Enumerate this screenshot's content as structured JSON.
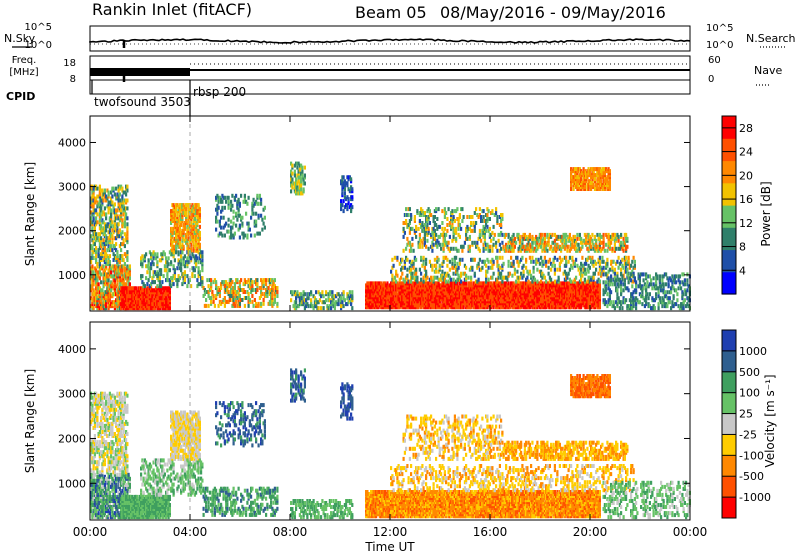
{
  "header": {
    "station": "Rankin Inlet (fitACF)",
    "beam": "Beam 05",
    "date_range": "08/May/2016 - 09/May/2016"
  },
  "summary": {
    "nsky_label": "N.Sky",
    "freq_label_1": "Freq.",
    "freq_label_2": "[MHz]",
    "cpid_label": "CPID",
    "nsearch_label": "N.Search",
    "nave_label": "Nave",
    "nsky_ticks": [
      "10^5",
      "10^0"
    ],
    "nsearch_ticks": [
      "10^5",
      "10^0"
    ],
    "freq_ticks": [
      "18",
      "8"
    ],
    "nave_ticks": [
      "60",
      "0"
    ],
    "cpid_segments": [
      {
        "label": "twofsound 3503",
        "start_hour": 0,
        "end_hour": 4.0
      },
      {
        "label": "rbsp 200",
        "start_hour": 4.0,
        "end_hour": 24
      }
    ]
  },
  "chart_data": [
    {
      "type": "heatmap",
      "name": "power",
      "ylabel": "Slant Range [km]",
      "xlabel": "Time UT",
      "xlim": [
        0,
        24
      ],
      "ylim": [
        180,
        4600
      ],
      "yticks": [
        1000,
        2000,
        3000,
        4000
      ],
      "xtick_labels": [
        "00:00",
        "04:00",
        "08:00",
        "12:00",
        "16:00",
        "20:00",
        "00:00"
      ],
      "colorbar": {
        "label": "Power [dB]",
        "ticks": [
          "4",
          "8",
          "12",
          "16",
          "20",
          "24",
          "28"
        ],
        "range": [
          0,
          30
        ],
        "colors": [
          "#0000ff",
          "#1f4fa8",
          "#2f7f6a",
          "#66c266",
          "#f2c200",
          "#ff8800",
          "#ff5000",
          "#ff0000"
        ]
      }
    },
    {
      "type": "heatmap",
      "name": "velocity",
      "ylabel": "Slant Range [km]",
      "xlabel": "Time UT",
      "xlim": [
        0,
        24
      ],
      "ylim": [
        180,
        4600
      ],
      "yticks": [
        1000,
        2000,
        3000,
        4000
      ],
      "xtick_labels": [
        "00:00",
        "04:00",
        "08:00",
        "12:00",
        "16:00",
        "20:00",
        "00:00"
      ],
      "colorbar": {
        "label": "Velocity [m s⁻¹]",
        "ticks": [
          "1000",
          "500",
          "100",
          "25",
          "-25",
          "-100",
          "-500",
          "-1000"
        ],
        "colors": [
          "#1f3fb0",
          "#2f5f8f",
          "#3f9f5f",
          "#66c266",
          "#c8c8c8",
          "#ffcc00",
          "#ff8800",
          "#ff5000",
          "#ff0000"
        ]
      }
    }
  ],
  "scatter_regions": [
    {
      "h0": 0.0,
      "h1": 1.6,
      "r0": 200,
      "r1": 1200,
      "d": 0.55,
      "p": [
        2,
        7
      ],
      "v": [
        0,
        4
      ]
    },
    {
      "h0": 0.0,
      "h1": 1.5,
      "r0": 1200,
      "r1": 3000,
      "d": 0.35,
      "p": [
        1,
        5
      ],
      "v": [
        3,
        5
      ]
    },
    {
      "h0": 1.2,
      "h1": 3.2,
      "r0": 200,
      "r1": 700,
      "d": 0.85,
      "p": [
        6,
        7
      ],
      "v": [
        2,
        3
      ]
    },
    {
      "h0": 3.2,
      "h1": 4.4,
      "r0": 1500,
      "r1": 2600,
      "d": 0.55,
      "p": [
        3,
        6
      ],
      "v": [
        4,
        5
      ]
    },
    {
      "h0": 2.0,
      "h1": 4.5,
      "r0": 700,
      "r1": 1500,
      "d": 0.25,
      "p": [
        1,
        4
      ],
      "v": [
        2,
        4
      ]
    },
    {
      "h0": 4.5,
      "h1": 7.5,
      "r0": 250,
      "r1": 900,
      "d": 0.3,
      "p": [
        2,
        6
      ],
      "v": [
        1,
        3
      ]
    },
    {
      "h0": 5.0,
      "h1": 7.0,
      "r0": 1800,
      "r1": 2800,
      "d": 0.2,
      "p": [
        1,
        3
      ],
      "v": [
        0,
        2
      ]
    },
    {
      "h0": 8.0,
      "h1": 10.5,
      "r0": 200,
      "r1": 600,
      "d": 0.35,
      "p": [
        1,
        4
      ],
      "v": [
        2,
        3
      ]
    },
    {
      "h0": 8.0,
      "h1": 8.6,
      "r0": 2800,
      "r1": 3500,
      "d": 0.35,
      "p": [
        2,
        4
      ],
      "v": [
        0,
        2
      ]
    },
    {
      "h0": 10.0,
      "h1": 10.5,
      "r0": 2400,
      "r1": 3200,
      "d": 0.3,
      "p": [
        0,
        2
      ],
      "v": [
        0,
        1
      ]
    },
    {
      "h0": 11.0,
      "h1": 20.4,
      "r0": 220,
      "r1": 800,
      "d": 0.9,
      "p": [
        6,
        7
      ],
      "v": [
        5,
        7
      ]
    },
    {
      "h0": 12.0,
      "h1": 21.8,
      "r0": 800,
      "r1": 1400,
      "d": 0.2,
      "p": [
        1,
        5
      ],
      "v": [
        4,
        6
      ]
    },
    {
      "h0": 12.5,
      "h1": 16.5,
      "r0": 1500,
      "r1": 2500,
      "d": 0.22,
      "p": [
        1,
        5
      ],
      "v": [
        4,
        6
      ]
    },
    {
      "h0": 16.5,
      "h1": 21.5,
      "r0": 1500,
      "r1": 1900,
      "d": 0.4,
      "p": [
        2,
        6
      ],
      "v": [
        5,
        6
      ]
    },
    {
      "h0": 19.2,
      "h1": 20.8,
      "r0": 2900,
      "r1": 3400,
      "d": 0.65,
      "p": [
        4,
        6
      ],
      "v": [
        6,
        7
      ]
    },
    {
      "h0": 20.5,
      "h1": 24.0,
      "r0": 200,
      "r1": 1000,
      "d": 0.25,
      "p": [
        1,
        3
      ],
      "v": [
        2,
        4
      ]
    }
  ]
}
